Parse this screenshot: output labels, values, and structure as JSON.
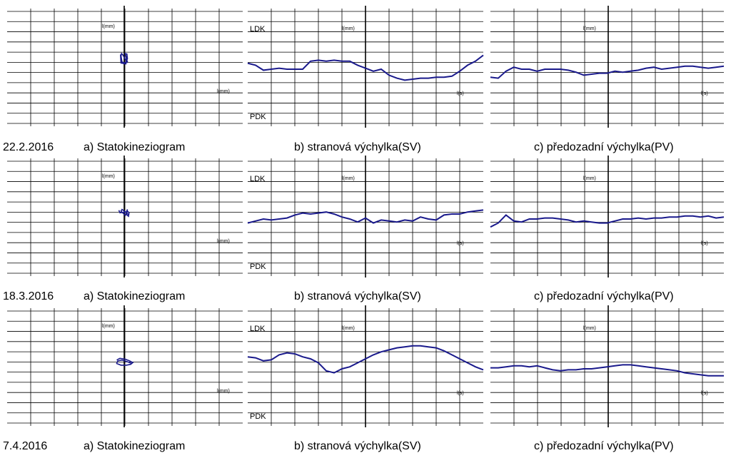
{
  "rows": [
    {
      "date": "22.2.2016",
      "captions": [
        "a) Statokineziogram",
        "b) stranová výchylka(SV)",
        "c) předozadní výchylka(PV)"
      ],
      "labels": {
        "a_y": "l(mm)",
        "a_x": "l(mm)",
        "b_top": "LDK",
        "b_bottom": "PDK",
        "b_y": "l(mm)",
        "b_x": "l(s)",
        "c_y": "l(mm)",
        "c_x": "l(s)"
      }
    },
    {
      "date": "18.3.2016",
      "captions": [
        "a) Statokineziogram",
        "b) stranová výchylka(SV)",
        "c) předozadní výchylka(PV)"
      ],
      "labels": {
        "a_y": "l(mm)",
        "a_x": "l(mm)",
        "b_top": "LDK",
        "b_bottom": "PDK",
        "b_y": "l(mm)",
        "b_x": "l(s)",
        "c_y": "l(mm)",
        "c_x": "l(s)"
      }
    },
    {
      "date": "7.4.2016",
      "captions": [
        "a) Statokineziogram",
        "b) stranová výchylka(SV)",
        "c) předozadní výchylka(PV)"
      ],
      "labels": {
        "a_y": "l(mm)",
        "a_x": "l(mm)",
        "b_top": "LDK",
        "b_bottom": "PDK",
        "b_y": "l(mm)",
        "b_x": "l(s)",
        "c_y": "l(mm)",
        "c_x": "l(s)"
      }
    }
  ],
  "colors": {
    "trace": "#1a1a8c",
    "grid": "#000000",
    "axis": "#000000"
  },
  "chart_data": [
    {
      "type": "scatter",
      "name_key": "statokineziogram-22-2-2016",
      "x": [
        -0.35,
        -0.3,
        0.15,
        0.2,
        0.1,
        0.25,
        0.3,
        0.15,
        -0.2,
        -0.3,
        -0.25,
        -0.1,
        0.1,
        0.3,
        0.25
      ],
      "y": [
        1.0,
        0.0,
        -0.1,
        0.6,
        1.1,
        1.05,
        0.5,
        0.0,
        0.1,
        0.8,
        1.1,
        0.9,
        0.4,
        0.2,
        0.0
      ],
      "xlim": [
        -5,
        5
      ],
      "ylim": [
        -4.5,
        4.5
      ]
    },
    {
      "type": "line",
      "name_key": "sv-22-2-2016",
      "y": [
        0.3,
        0.2,
        -0.05,
        0.0,
        0.05,
        0.0,
        0.0,
        0.0,
        0.4,
        0.45,
        0.4,
        0.45,
        0.4,
        0.4,
        0.2,
        0.05,
        -0.1,
        0.0,
        -0.3,
        -0.45,
        -0.55,
        -0.5,
        -0.45,
        -0.45,
        -0.4,
        -0.4,
        -0.35,
        -0.1,
        0.2,
        0.4,
        0.7
      ],
      "xlim": [
        0,
        30
      ],
      "ylim": [
        -4,
        4
      ]
    },
    {
      "type": "line",
      "name_key": "pv-22-2-2016",
      "y": [
        -0.4,
        -0.45,
        -0.1,
        0.1,
        0.0,
        0.0,
        -0.1,
        0.0,
        0.0,
        0.0,
        -0.05,
        -0.15,
        -0.3,
        -0.25,
        -0.2,
        -0.2,
        -0.1,
        -0.15,
        -0.1,
        -0.05,
        0.05,
        0.1,
        0.0,
        0.05,
        0.1,
        0.15,
        0.15,
        0.1,
        0.05,
        0.1,
        0.15
      ],
      "xlim": [
        0,
        30
      ],
      "ylim": [
        -4,
        4
      ]
    },
    {
      "type": "scatter",
      "name_key": "statokineziogram-18-3-2016",
      "x": [
        -0.5,
        -0.4,
        0.2,
        0.3,
        0.2,
        0.4,
        0.45,
        0.3,
        0.1,
        -0.3,
        -0.2,
        0.2,
        0.4
      ],
      "y": [
        0.3,
        0.0,
        0.1,
        0.4,
        -0.2,
        -0.4,
        0.0,
        0.2,
        -0.3,
        0.2,
        0.4,
        0.0,
        -0.2
      ],
      "xlim": [
        -5,
        5
      ],
      "ylim": [
        -4.5,
        4.5
      ]
    },
    {
      "type": "line",
      "name_key": "sv-18-3-2016",
      "y": [
        -0.2,
        -0.1,
        0.0,
        -0.05,
        0.0,
        0.05,
        0.2,
        0.3,
        0.25,
        0.3,
        0.35,
        0.25,
        0.1,
        0.0,
        -0.15,
        0.05,
        -0.2,
        -0.05,
        -0.1,
        -0.15,
        -0.05,
        -0.1,
        0.1,
        0.0,
        -0.05,
        0.2,
        0.25,
        0.25,
        0.35,
        0.4,
        0.45
      ],
      "xlim": [
        0,
        30
      ],
      "ylim": [
        -4,
        4
      ]
    },
    {
      "type": "line",
      "name_key": "pv-18-3-2016",
      "y": [
        -0.4,
        -0.2,
        0.2,
        -0.1,
        -0.15,
        0.0,
        0.0,
        0.05,
        0.05,
        0.0,
        -0.05,
        -0.15,
        -0.1,
        -0.15,
        -0.2,
        -0.2,
        -0.1,
        0.0,
        0.0,
        0.05,
        0.0,
        0.05,
        0.05,
        0.1,
        0.1,
        0.15,
        0.15,
        0.1,
        0.15,
        0.05,
        0.1
      ],
      "xlim": [
        0,
        30
      ],
      "ylim": [
        -4,
        4
      ]
    },
    {
      "type": "scatter",
      "name_key": "statokineziogram-7-4-2016",
      "x": [
        -0.7,
        -0.4,
        0.1,
        0.5,
        0.8,
        0.6,
        0.2,
        -0.3,
        -0.7,
        -0.6,
        -0.2,
        0.3,
        0.7
      ],
      "y": [
        0.3,
        0.5,
        0.4,
        0.2,
        0.0,
        -0.2,
        -0.3,
        -0.3,
        -0.1,
        0.2,
        0.3,
        0.1,
        -0.1
      ],
      "xlim": [
        -5,
        5
      ],
      "ylim": [
        -4.5,
        4.5
      ]
    },
    {
      "type": "line",
      "name_key": "sv-7-4-2016",
      "y": [
        0.6,
        0.55,
        0.4,
        0.45,
        0.7,
        0.8,
        0.75,
        0.6,
        0.5,
        0.3,
        -0.1,
        -0.2,
        0.0,
        0.1,
        0.3,
        0.5,
        0.7,
        0.85,
        0.95,
        1.05,
        1.1,
        1.15,
        1.15,
        1.1,
        1.05,
        0.9,
        0.7,
        0.5,
        0.3,
        0.1,
        -0.05
      ],
      "xlim": [
        0,
        30
      ],
      "ylim": [
        -4,
        4
      ]
    },
    {
      "type": "line",
      "name_key": "pv-7-4-2016",
      "y": [
        0.05,
        0.05,
        0.1,
        0.15,
        0.15,
        0.1,
        0.15,
        0.05,
        -0.05,
        -0.1,
        -0.05,
        -0.05,
        0.0,
        0.0,
        0.05,
        0.1,
        0.15,
        0.2,
        0.2,
        0.15,
        0.1,
        0.05,
        0.0,
        -0.05,
        -0.1,
        -0.2,
        -0.25,
        -0.3,
        -0.35,
        -0.35,
        -0.35
      ],
      "xlim": [
        0,
        30
      ],
      "ylim": [
        -4,
        4
      ]
    }
  ]
}
